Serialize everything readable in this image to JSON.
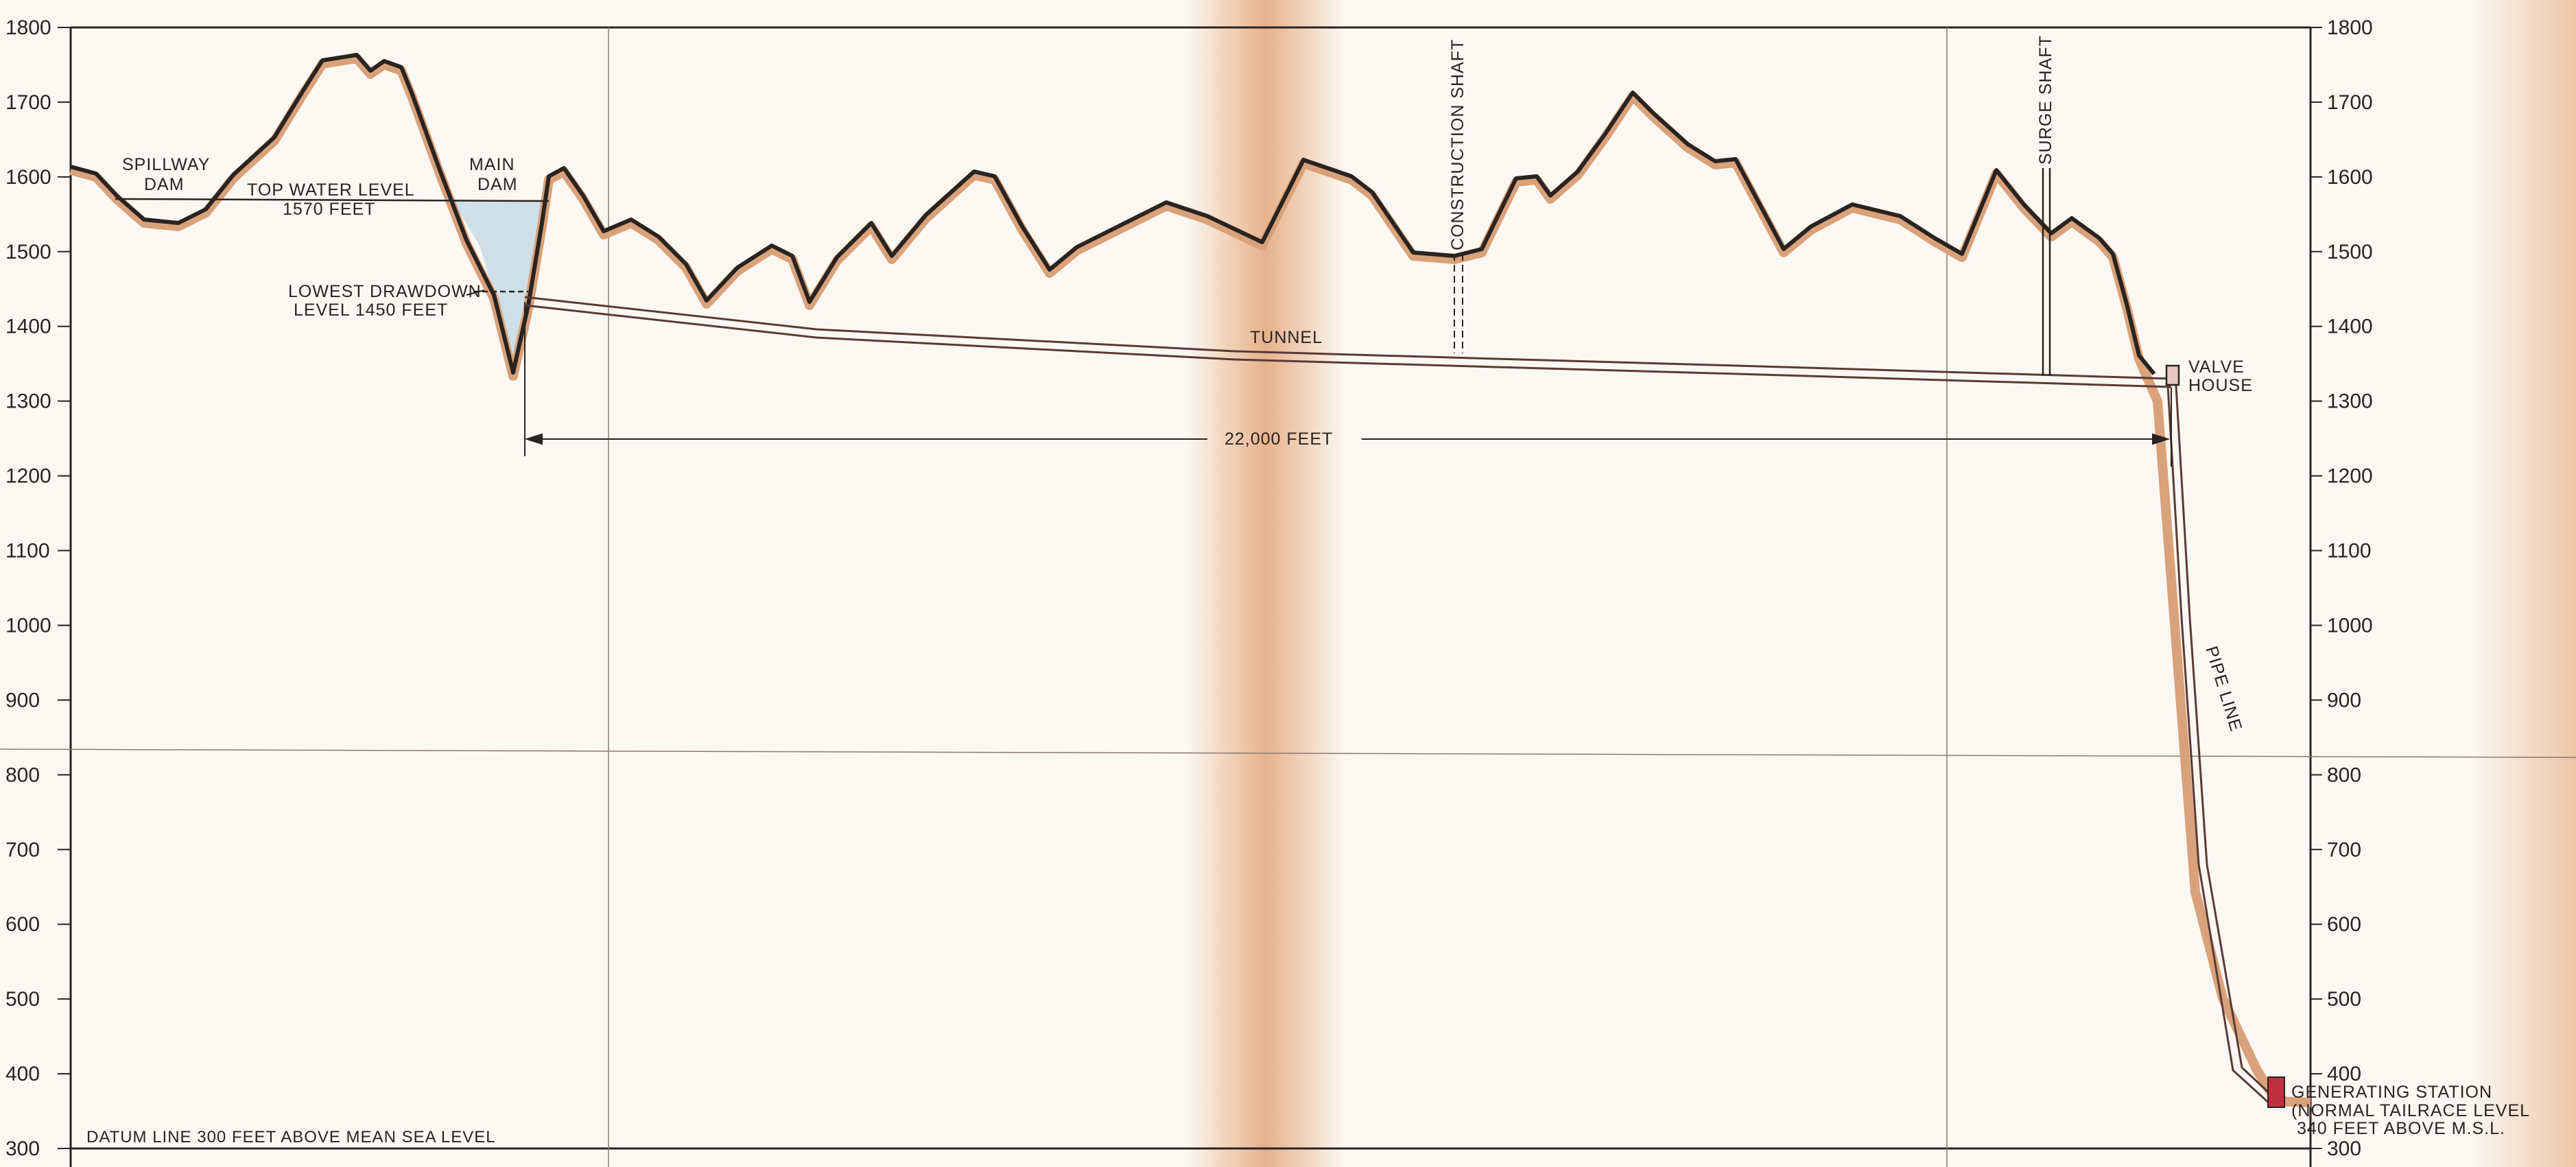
{
  "left_axis_ticks": [
    "1800",
    "1700",
    "1600",
    "1500",
    "1400",
    "1300",
    "1200",
    "1100",
    "1000",
    "900",
    "800",
    "700",
    "600",
    "500",
    "400",
    "300"
  ],
  "right_axis_ticks": [
    "1800",
    "1700",
    "1600",
    "1500",
    "1400",
    "1300",
    "1200",
    "1100",
    "1000",
    "900",
    "800",
    "700",
    "600",
    "500",
    "400",
    "300"
  ],
  "labels": {
    "spillway_dam": [
      "SPILLWAY",
      "DAM"
    ],
    "top_water_level": [
      "TOP WATER LEVEL",
      "1570 FEET"
    ],
    "main_dam": [
      "MAIN",
      "DAM"
    ],
    "lowest_drawdown": [
      "LOWEST DRAWDOWN",
      "LEVEL 1450 FEET"
    ],
    "tunnel": "TUNNEL",
    "construction_shaft": "CONSTRUCTION SHAFT",
    "surge_shaft": "SURGE SHAFT",
    "valve_house": [
      "VALVE",
      "HOUSE"
    ],
    "distance": "22,000 FEET",
    "pipe_line": "PIPE LINE",
    "generating_station": [
      "GENERATING STATION",
      "(NORMAL TAILRACE LEVEL",
      "340 FEET ABOVE M.S.L."
    ],
    "datum": "DATUM LINE 300 FEET ABOVE MEAN SEA LEVEL"
  },
  "colors": {
    "paper": "#fbf8f3",
    "ink": "#2a2320",
    "ground_shadow": "#d9a27a",
    "fold_stain": "#e9b68e",
    "water": "#c9dbe6",
    "station": "#c0313f"
  },
  "elevations_ft": {
    "top_water_level": 1570,
    "lowest_drawdown_level": 1450,
    "tailrace_level": 340,
    "datum": 300
  }
}
